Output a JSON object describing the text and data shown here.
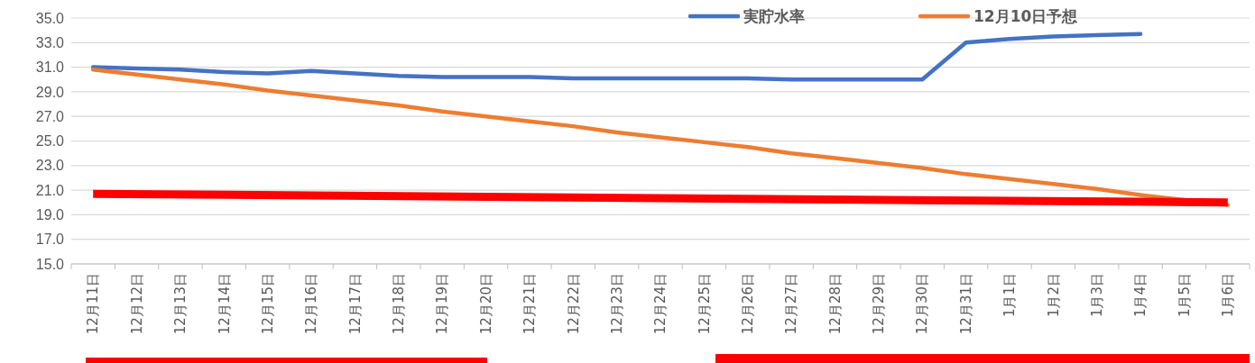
{
  "chart_data": {
    "type": "line",
    "categories": [
      "12月11日",
      "12月12日",
      "12月13日",
      "12月14日",
      "12月15日",
      "12月16日",
      "12月17日",
      "12月18日",
      "12月19日",
      "12月20日",
      "12月21日",
      "12月22日",
      "12月23日",
      "12月24日",
      "12月25日",
      "12月26日",
      "12月27日",
      "12月28日",
      "12月29日",
      "12月30日",
      "12月31日",
      "1月1日",
      "1月2日",
      "1月3日",
      "1月4日",
      "1月5日",
      "1月6日"
    ],
    "series": [
      {
        "name": "実貯水率",
        "color": "#4472c4",
        "values": [
          31.0,
          30.9,
          30.8,
          30.6,
          30.5,
          30.7,
          30.5,
          30.3,
          30.2,
          30.2,
          30.2,
          30.1,
          30.1,
          30.1,
          30.1,
          30.1,
          30.0,
          30.0,
          30.0,
          30.0,
          33.0,
          33.3,
          33.5,
          33.6,
          33.7,
          null,
          null
        ]
      },
      {
        "name": "12月10日予想",
        "color": "#ed7d31",
        "values": [
          30.8,
          30.4,
          30.0,
          29.6,
          29.1,
          28.7,
          28.3,
          27.9,
          27.4,
          27.0,
          26.6,
          26.2,
          25.7,
          25.3,
          24.9,
          24.5,
          24.0,
          23.6,
          23.2,
          22.8,
          22.3,
          21.9,
          21.5,
          21.1,
          20.6,
          20.2,
          19.8
        ]
      },
      {
        "color": "#ff0000",
        "x": [
          "12月11日",
          "1月6日"
        ],
        "values": [
          20.7,
          20.0
        ]
      }
    ],
    "ylim": [
      15,
      35
    ],
    "yticks": [
      {
        "value": 15,
        "label": "15.0"
      },
      {
        "value": 17,
        "label": "17.0"
      },
      {
        "value": 19,
        "label": "19.0"
      },
      {
        "value": 21,
        "label": "21.0"
      },
      {
        "value": 23,
        "label": "23.0"
      },
      {
        "value": 25,
        "label": "25.0"
      },
      {
        "value": 27,
        "label": "27.0"
      },
      {
        "value": 29,
        "label": "29.0"
      },
      {
        "value": 31,
        "label": "31.0"
      },
      {
        "value": 33,
        "label": "33.0"
      },
      {
        "value": 35,
        "label": "35.0"
      }
    ],
    "grid": "y",
    "legend": "top",
    "marker": "none",
    "line_style": "solid"
  }
}
